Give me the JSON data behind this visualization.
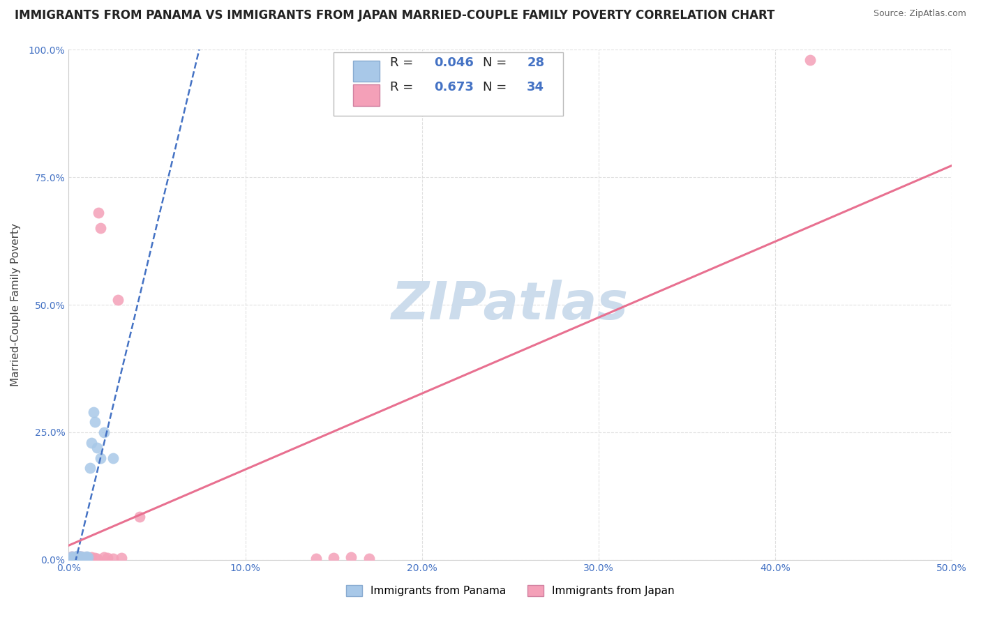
{
  "title": "IMMIGRANTS FROM PANAMA VS IMMIGRANTS FROM JAPAN MARRIED-COUPLE FAMILY POVERTY CORRELATION CHART",
  "source": "Source: ZipAtlas.com",
  "ylabel": "Married-Couple Family Poverty",
  "xlim": [
    0.0,
    0.5
  ],
  "ylim": [
    0.0,
    1.0
  ],
  "xticks": [
    0.0,
    0.1,
    0.2,
    0.3,
    0.4,
    0.5
  ],
  "xtick_labels": [
    "0.0%",
    "10.0%",
    "20.0%",
    "30.0%",
    "40.0%",
    "50.0%"
  ],
  "yticks": [
    0.0,
    0.25,
    0.5,
    0.75,
    1.0
  ],
  "ytick_labels": [
    "0.0%",
    "25.0%",
    "50.0%",
    "75.0%",
    "100.0%"
  ],
  "panama_color": "#a8c8e8",
  "japan_color": "#f4a0b8",
  "panama_label": "Immigrants from Panama",
  "japan_label": "Immigrants from Japan",
  "panama_R": "0.046",
  "panama_N": "28",
  "japan_R": "0.673",
  "japan_N": "34",
  "watermark": "ZIPatlas",
  "watermark_color": "#ccdcec",
  "background_color": "#ffffff",
  "grid_color": "#dddddd",
  "panama_line_color": "#4472c4",
  "japan_line_color": "#e87090",
  "stat_color": "#4472c4",
  "title_fontsize": 12,
  "axis_label_fontsize": 11,
  "tick_fontsize": 10,
  "legend_fontsize": 13,
  "panama_x": [
    0.001,
    0.002,
    0.002,
    0.003,
    0.003,
    0.004,
    0.004,
    0.005,
    0.005,
    0.005,
    0.006,
    0.006,
    0.007,
    0.007,
    0.008,
    0.008,
    0.009,
    0.01,
    0.01,
    0.011,
    0.012,
    0.013,
    0.014,
    0.015,
    0.016,
    0.018,
    0.02,
    0.025
  ],
  "panama_y": [
    0.003,
    0.004,
    0.006,
    0.003,
    0.005,
    0.004,
    0.007,
    0.003,
    0.005,
    0.008,
    0.004,
    0.007,
    0.003,
    0.006,
    0.004,
    0.005,
    0.003,
    0.004,
    0.007,
    0.005,
    0.18,
    0.23,
    0.29,
    0.27,
    0.22,
    0.2,
    0.25,
    0.2
  ],
  "japan_x": [
    0.001,
    0.002,
    0.002,
    0.003,
    0.003,
    0.004,
    0.004,
    0.005,
    0.005,
    0.006,
    0.006,
    0.007,
    0.007,
    0.008,
    0.009,
    0.01,
    0.011,
    0.012,
    0.013,
    0.015,
    0.016,
    0.017,
    0.018,
    0.02,
    0.022,
    0.025,
    0.028,
    0.03,
    0.04,
    0.14,
    0.15,
    0.16,
    0.17,
    0.42
  ],
  "japan_y": [
    0.003,
    0.004,
    0.006,
    0.003,
    0.005,
    0.003,
    0.007,
    0.003,
    0.005,
    0.004,
    0.006,
    0.003,
    0.006,
    0.004,
    0.003,
    0.005,
    0.004,
    0.003,
    0.005,
    0.004,
    0.003,
    0.68,
    0.65,
    0.005,
    0.004,
    0.003,
    0.51,
    0.004,
    0.085,
    0.003,
    0.004,
    0.005,
    0.003,
    0.98
  ]
}
